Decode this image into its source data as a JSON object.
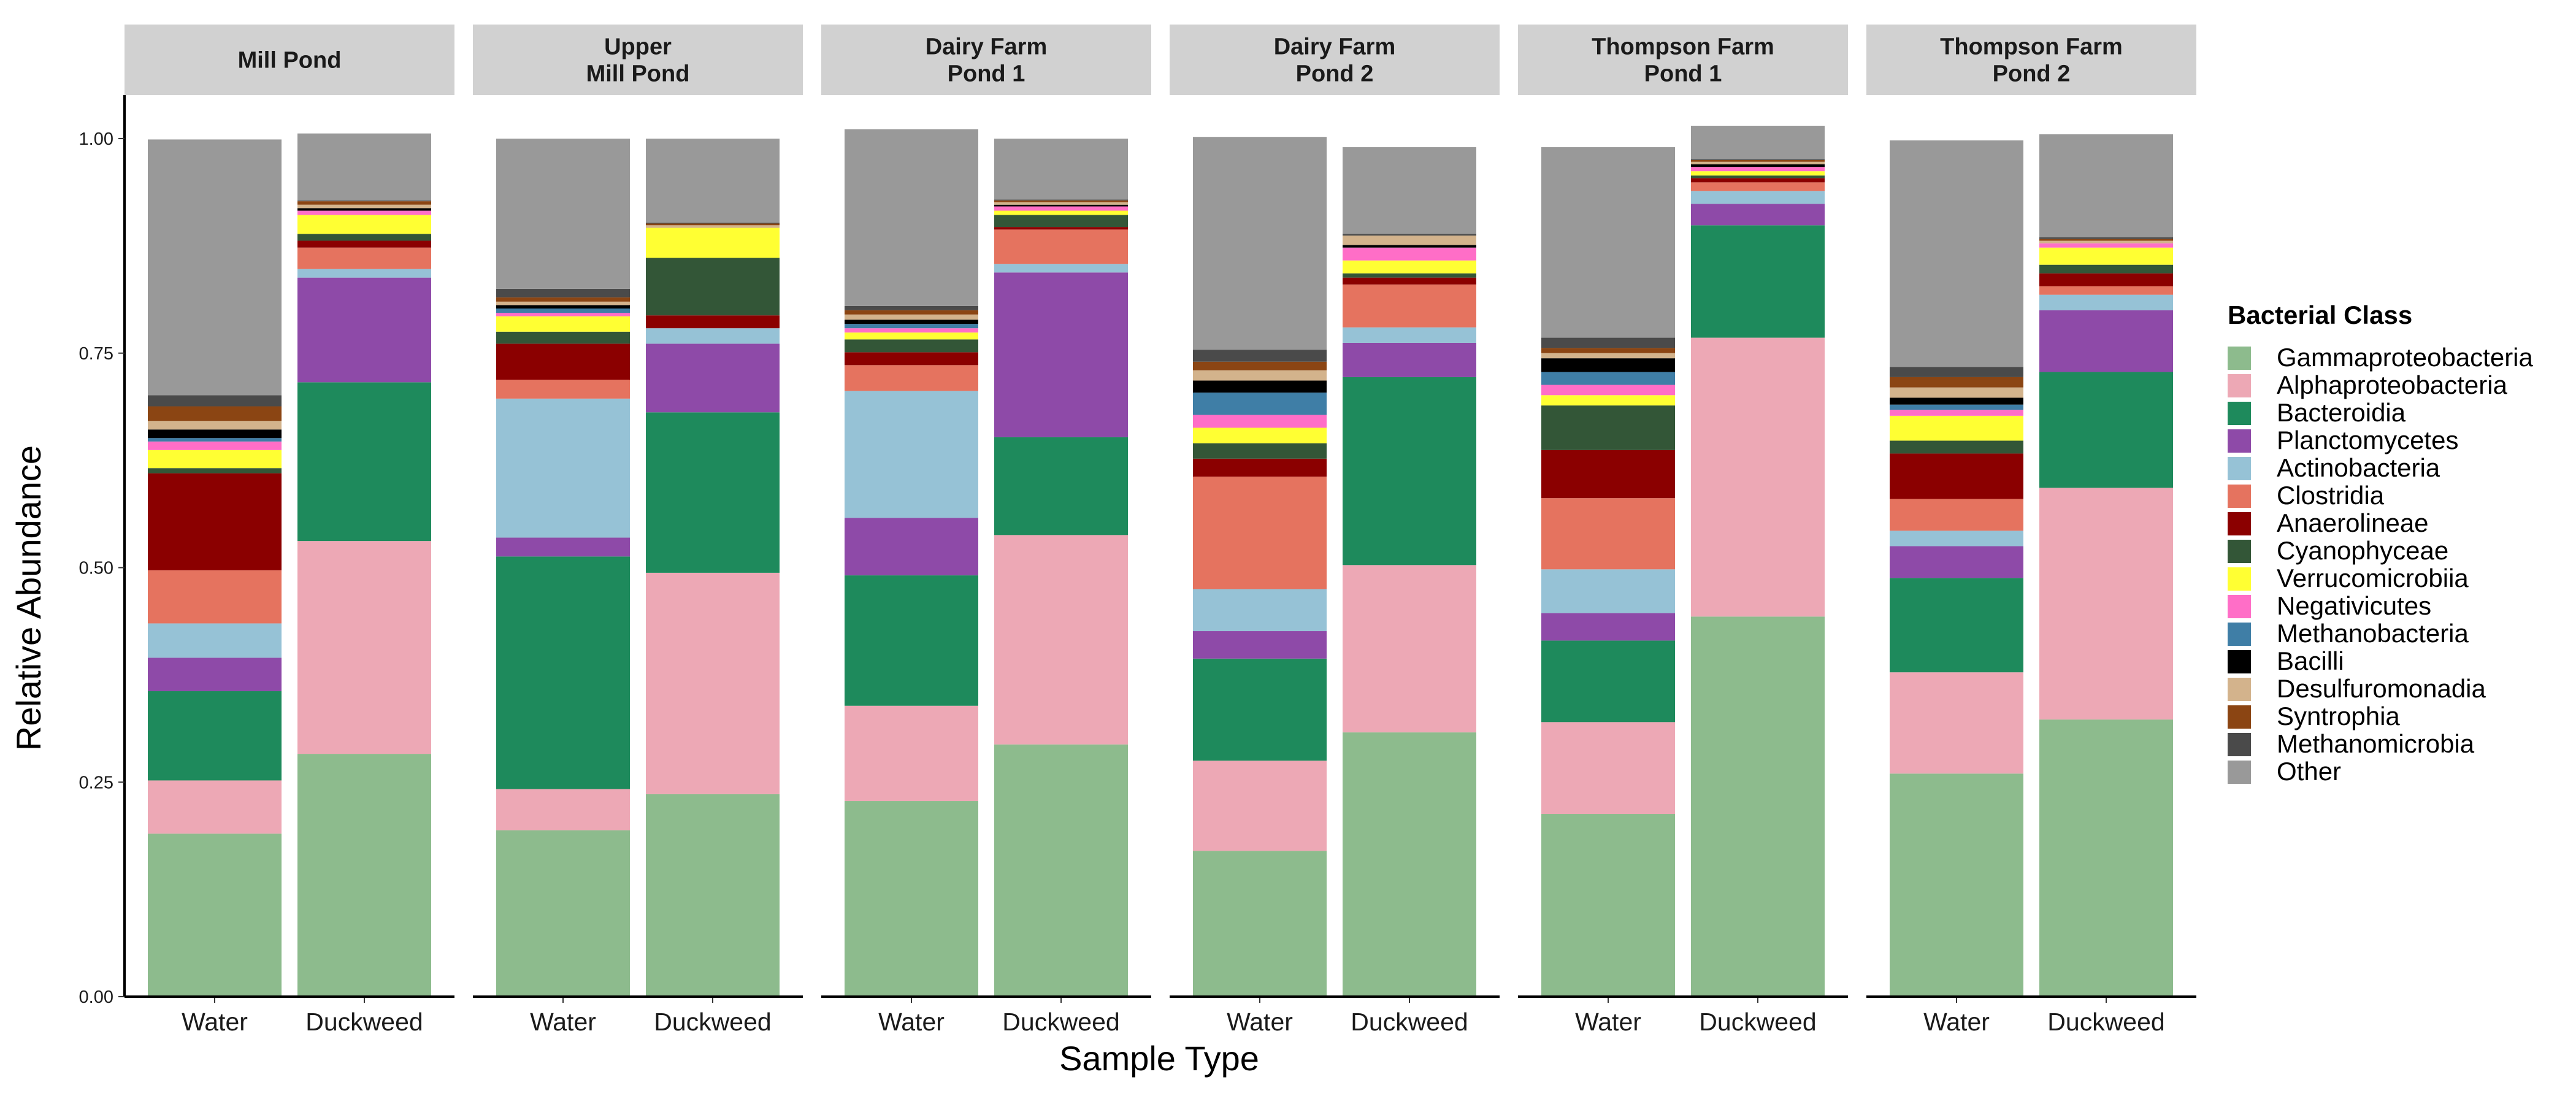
{
  "chart_data": {
    "type": "bar",
    "stacked": true,
    "xlabel": "Sample Type",
    "ylabel": "Relative Abundance",
    "ylim": [
      0,
      1
    ],
    "yticks": [
      "0.00",
      "0.25",
      "0.50",
      "0.75",
      "1.00"
    ],
    "categories": [
      "Water",
      "Duckweed"
    ],
    "facets": [
      "Mill Pond",
      "Upper\nMill Pond",
      "Dairy Farm\nPond 1",
      "Dairy Farm\nPond 2",
      "Thompson Farm\nPond 1",
      "Thompson Farm\nPond 2"
    ],
    "legend": {
      "title": "Bacterial Class",
      "position": "right"
    },
    "grid": false,
    "series": [
      {
        "name": "Gammaproteobacteria",
        "color": "#8dbb8d",
        "values": [
          [
            0.19,
            0.283
          ],
          [
            0.194,
            0.236
          ],
          [
            0.228,
            0.294
          ],
          [
            0.17,
            0.308
          ],
          [
            0.213,
            0.443
          ],
          [
            0.26,
            0.323
          ]
        ]
      },
      {
        "name": "Alphaproteobacteria",
        "color": "#eda8b5",
        "values": [
          [
            0.062,
            0.248
          ],
          [
            0.048,
            0.258
          ],
          [
            0.111,
            0.244
          ],
          [
            0.105,
            0.195
          ],
          [
            0.107,
            0.325
          ],
          [
            0.118,
            0.27
          ]
        ]
      },
      {
        "name": "Bacteroidia",
        "color": "#1e8a5c",
        "values": [
          [
            0.104,
            0.185
          ],
          [
            0.271,
            0.187
          ],
          [
            0.152,
            0.114
          ],
          [
            0.119,
            0.219
          ],
          [
            0.095,
            0.131
          ],
          [
            0.11,
            0.135
          ]
        ]
      },
      {
        "name": "Planctomycetes",
        "color": "#8e4aa8",
        "values": [
          [
            0.039,
            0.122
          ],
          [
            0.022,
            0.08
          ],
          [
            0.067,
            0.192
          ],
          [
            0.032,
            0.04
          ],
          [
            0.032,
            0.025
          ],
          [
            0.037,
            0.072
          ]
        ]
      },
      {
        "name": "Actinobacteria",
        "color": "#96c2d6",
        "values": [
          [
            0.04,
            0.01
          ],
          [
            0.162,
            0.018
          ],
          [
            0.148,
            0.01
          ],
          [
            0.049,
            0.018
          ],
          [
            0.051,
            0.015
          ],
          [
            0.018,
            0.018
          ]
        ]
      },
      {
        "name": "Clostridia",
        "color": "#e5735f",
        "values": [
          [
            0.062,
            0.025
          ],
          [
            0.022,
            0.0
          ],
          [
            0.03,
            0.04
          ],
          [
            0.131,
            0.05
          ],
          [
            0.083,
            0.01
          ],
          [
            0.037,
            0.01
          ]
        ]
      },
      {
        "name": "Anaerolineae",
        "color": "#8b0000",
        "values": [
          [
            0.113,
            0.008
          ],
          [
            0.042,
            0.015
          ],
          [
            0.015,
            0.003
          ],
          [
            0.021,
            0.008
          ],
          [
            0.056,
            0.005
          ],
          [
            0.053,
            0.015
          ]
        ]
      },
      {
        "name": "Cyanophyceae",
        "color": "#335637",
        "values": [
          [
            0.006,
            0.008
          ],
          [
            0.014,
            0.067
          ],
          [
            0.015,
            0.014
          ],
          [
            0.018,
            0.005
          ],
          [
            0.052,
            0.003
          ],
          [
            0.015,
            0.01
          ]
        ]
      },
      {
        "name": "Verrucomicrobiia",
        "color": "#ffff33",
        "values": [
          [
            0.021,
            0.022
          ],
          [
            0.018,
            0.035
          ],
          [
            0.008,
            0.005
          ],
          [
            0.018,
            0.015
          ],
          [
            0.012,
            0.005
          ],
          [
            0.029,
            0.02
          ]
        ]
      },
      {
        "name": "Negativicutes",
        "color": "#ff6ec7",
        "values": [
          [
            0.01,
            0.005
          ],
          [
            0.004,
            0.0
          ],
          [
            0.005,
            0.005
          ],
          [
            0.015,
            0.015
          ],
          [
            0.012,
            0.005
          ],
          [
            0.007,
            0.005
          ]
        ]
      },
      {
        "name": "Methanobacteria",
        "color": "#3f7ea6",
        "values": [
          [
            0.004,
            0.0
          ],
          [
            0.005,
            0.0
          ],
          [
            0.005,
            0.0
          ],
          [
            0.026,
            0.0
          ],
          [
            0.015,
            0.0
          ],
          [
            0.006,
            0.0
          ]
        ]
      },
      {
        "name": "Bacilli",
        "color": "#000000",
        "values": [
          [
            0.01,
            0.003
          ],
          [
            0.004,
            0.0
          ],
          [
            0.005,
            0.002
          ],
          [
            0.014,
            0.003
          ],
          [
            0.016,
            0.003
          ],
          [
            0.008,
            0.0
          ]
        ]
      },
      {
        "name": "Desulfuromonadia",
        "color": "#d3b38c",
        "values": [
          [
            0.01,
            0.004
          ],
          [
            0.004,
            0.003
          ],
          [
            0.006,
            0.003
          ],
          [
            0.012,
            0.011
          ],
          [
            0.006,
            0.003
          ],
          [
            0.012,
            0.003
          ]
        ]
      },
      {
        "name": "Syntrophia",
        "color": "#8b4513",
        "values": [
          [
            0.017,
            0.004
          ],
          [
            0.005,
            0.002
          ],
          [
            0.005,
            0.002
          ],
          [
            0.01,
            0.0
          ],
          [
            0.006,
            0.002
          ],
          [
            0.012,
            0.002
          ]
        ]
      },
      {
        "name": "Methanomicrobia",
        "color": "#4a4a4a",
        "values": [
          [
            0.013,
            0.001
          ],
          [
            0.01,
            0.001
          ],
          [
            0.005,
            0.001
          ],
          [
            0.014,
            0.002
          ],
          [
            0.012,
            0.001
          ],
          [
            0.012,
            0.002
          ]
        ]
      },
      {
        "name": "Other",
        "color": "#999999",
        "values": [
          [
            0.298,
            0.078
          ],
          [
            0.175,
            0.098
          ],
          [
            0.206,
            0.071
          ],
          [
            0.248,
            0.101
          ],
          [
            0.222,
            0.039
          ],
          [
            0.264,
            0.12
          ]
        ]
      }
    ]
  }
}
